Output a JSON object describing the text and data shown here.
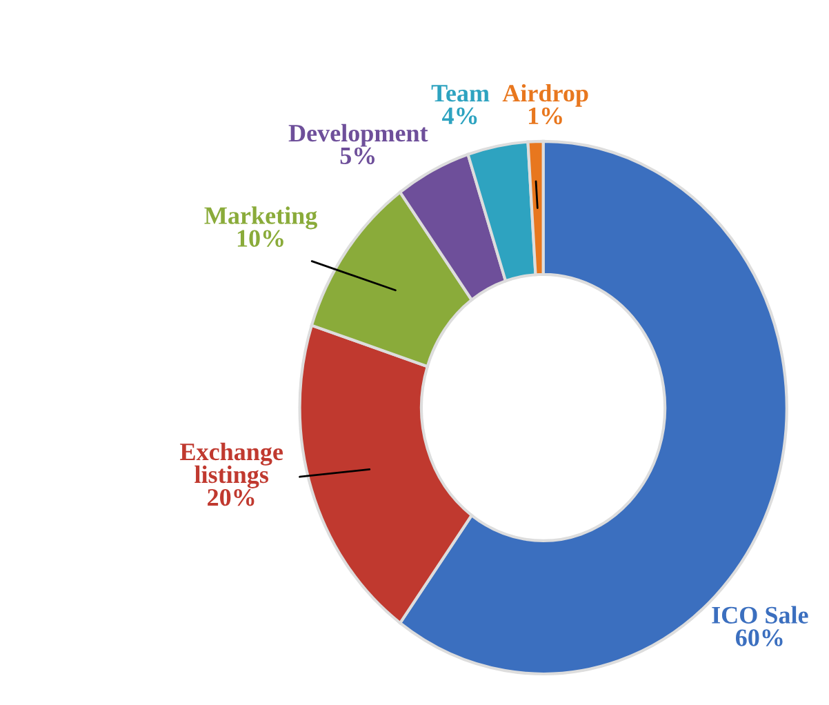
{
  "chart_data": {
    "type": "donut",
    "categories": [
      "ICO Sale",
      "Exchange\nlistings",
      "Marketing",
      "Development",
      "Team",
      "Airdrop"
    ],
    "values": [
      60,
      20,
      10,
      5,
      4,
      1
    ],
    "value_labels": [
      "60%",
      "20%",
      "10%",
      "5%",
      "4%",
      "1%"
    ],
    "colors": [
      "#3b6fbf",
      "#c0392f",
      "#8aab3a",
      "#6e4f9a",
      "#2ea3c0",
      "#e8771e"
    ],
    "legend": false
  }
}
